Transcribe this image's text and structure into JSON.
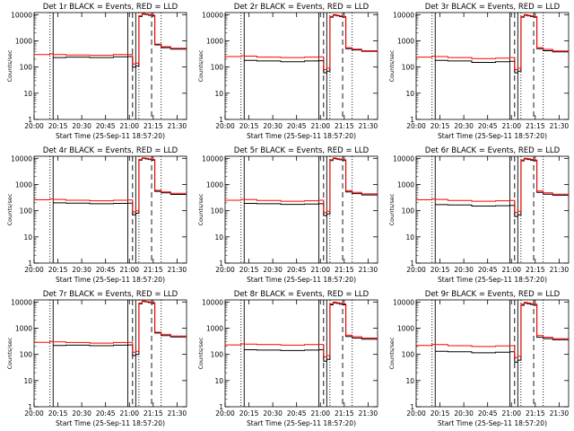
{
  "figure": {
    "xtick_labels": [
      "20:00",
      "20:15",
      "20:30",
      "20:45",
      "21:00",
      "21:15",
      "21:30"
    ],
    "xtick_minutes": [
      0,
      15,
      30,
      45,
      60,
      75,
      90
    ],
    "x_range_minutes": [
      0,
      96
    ],
    "ytick_labels": [
      "1",
      "10",
      "100",
      "1000",
      "10000"
    ],
    "ytick_values": [
      1,
      10,
      100,
      1000,
      10000
    ],
    "y_range": [
      1,
      12000
    ],
    "y_scale": "log",
    "ylabel": "Counts/sec",
    "xlabel": "Start Time (25-Sep-11 18:57:20)",
    "colors": {
      "events": "#000000",
      "lld": "#ff0000",
      "axes": "#000000"
    }
  },
  "chart_data": [
    {
      "type": "line",
      "title": "Det 1r BLACK = Events, RED = LLD",
      "x": [
        0,
        10,
        12,
        20,
        35,
        50,
        59,
        62,
        64,
        66,
        68,
        70,
        72,
        74,
        76,
        80,
        86,
        96
      ],
      "series": [
        {
          "values": [
            null,
            null,
            230,
            240,
            230,
            245,
            250,
            100,
            110,
            8500,
            10500,
            10000,
            9500,
            9000,
            700,
            550,
            480,
            420
          ]
        },
        {
          "values": [
            300,
            320,
            300,
            290,
            280,
            300,
            300,
            130,
            140,
            9000,
            11000,
            10500,
            10000,
            9500,
            750,
            600,
            520,
            450
          ]
        }
      ],
      "vlines_solid": [
        12,
        59,
        64
      ],
      "vlines_dashed": [
        62,
        74
      ],
      "vlines_dotted": [
        10,
        66,
        80
      ]
    },
    {
      "type": "line",
      "title": "Det 2r BLACK = Events, RED = LLD",
      "x": [
        0,
        10,
        12,
        20,
        35,
        50,
        59,
        62,
        64,
        66,
        68,
        70,
        72,
        74,
        76,
        80,
        86,
        96
      ],
      "series": [
        {
          "values": [
            null,
            null,
            180,
            170,
            160,
            170,
            175,
            60,
            70,
            8000,
            9500,
            9000,
            8500,
            8000,
            500,
            450,
            400,
            350
          ]
        },
        {
          "values": [
            250,
            270,
            260,
            240,
            230,
            240,
            245,
            80,
            90,
            8500,
            10000,
            9500,
            9000,
            8500,
            550,
            480,
            420,
            360
          ]
        }
      ],
      "vlines_solid": [
        12,
        59,
        64
      ],
      "vlines_dashed": [
        62,
        74
      ],
      "vlines_dotted": [
        10,
        66,
        80
      ]
    },
    {
      "type": "line",
      "title": "Det 3r BLACK = Events, RED = LLD",
      "x": [
        0,
        10,
        12,
        20,
        35,
        50,
        59,
        62,
        64,
        66,
        68,
        70,
        72,
        74,
        76,
        80,
        86,
        96
      ],
      "series": [
        {
          "values": [
            null,
            null,
            180,
            170,
            150,
            160,
            165,
            60,
            70,
            8000,
            9500,
            9000,
            8500,
            8000,
            500,
            420,
            380,
            330
          ]
        },
        {
          "values": [
            240,
            260,
            250,
            230,
            210,
            220,
            230,
            80,
            90,
            8500,
            10000,
            9500,
            9000,
            8500,
            550,
            470,
            410,
            350
          ]
        }
      ],
      "vlines_solid": [
        12,
        59,
        64
      ],
      "vlines_dashed": [
        62,
        74
      ],
      "vlines_dotted": [
        10,
        66,
        80
      ]
    },
    {
      "type": "line",
      "title": "Det 4r BLACK = Events, RED = LLD",
      "x": [
        0,
        10,
        12,
        20,
        35,
        50,
        59,
        62,
        64,
        66,
        68,
        70,
        72,
        74,
        76,
        80,
        86,
        96
      ],
      "series": [
        {
          "values": [
            null,
            null,
            200,
            195,
            185,
            190,
            195,
            70,
            80,
            8500,
            10000,
            9500,
            9000,
            8500,
            550,
            480,
            420,
            380
          ]
        },
        {
          "values": [
            260,
            280,
            270,
            250,
            240,
            250,
            255,
            90,
            100,
            9000,
            10500,
            10000,
            9500,
            9000,
            600,
            520,
            460,
            400
          ]
        }
      ],
      "vlines_solid": [
        12,
        59,
        64
      ],
      "vlines_dashed": [
        62,
        74
      ],
      "vlines_dotted": [
        10,
        66,
        80
      ]
    },
    {
      "type": "line",
      "title": "Det 5r BLACK = Events, RED = LLD",
      "x": [
        0,
        10,
        12,
        20,
        35,
        50,
        59,
        62,
        64,
        66,
        68,
        70,
        72,
        74,
        76,
        80,
        86,
        96
      ],
      "series": [
        {
          "values": [
            null,
            null,
            190,
            185,
            175,
            180,
            185,
            65,
            75,
            8200,
            9800,
            9300,
            8800,
            8300,
            520,
            450,
            400,
            360
          ]
        },
        {
          "values": [
            250,
            270,
            265,
            245,
            230,
            240,
            250,
            85,
            95,
            8800,
            10300,
            9800,
            9300,
            8800,
            580,
            500,
            440,
            390
          ]
        }
      ],
      "vlines_solid": [
        12,
        59,
        64
      ],
      "vlines_dashed": [
        62,
        74
      ],
      "vlines_dotted": [
        10,
        66,
        80
      ]
    },
    {
      "type": "line",
      "title": "Det 6r BLACK = Events, RED = LLD",
      "x": [
        0,
        10,
        12,
        20,
        35,
        50,
        59,
        62,
        64,
        66,
        68,
        70,
        72,
        74,
        76,
        80,
        86,
        96
      ],
      "series": [
        {
          "values": [
            null,
            null,
            170,
            165,
            150,
            155,
            160,
            60,
            70,
            8000,
            9500,
            9000,
            8500,
            8000,
            500,
            430,
            390,
            340
          ]
        },
        {
          "values": [
            260,
            280,
            270,
            245,
            230,
            240,
            245,
            85,
            95,
            8600,
            10100,
            9600,
            9100,
            8600,
            560,
            480,
            430,
            370
          ]
        }
      ],
      "vlines_solid": [
        12,
        59,
        64
      ],
      "vlines_dashed": [
        62,
        74
      ],
      "vlines_dotted": [
        10,
        66,
        80
      ]
    },
    {
      "type": "line",
      "title": "Det 7r BLACK = Events, RED = LLD",
      "x": [
        0,
        10,
        12,
        20,
        35,
        50,
        59,
        62,
        64,
        66,
        68,
        70,
        72,
        74,
        76,
        80,
        86,
        96
      ],
      "series": [
        {
          "values": [
            null,
            null,
            220,
            225,
            215,
            225,
            230,
            90,
            100,
            8500,
            10500,
            10000,
            9500,
            9000,
            650,
            520,
            460,
            400
          ]
        },
        {
          "values": [
            290,
            310,
            300,
            285,
            270,
            285,
            290,
            120,
            130,
            9000,
            11000,
            10500,
            10000,
            9500,
            700,
            580,
            500,
            430
          ]
        }
      ],
      "vlines_solid": [
        12,
        59,
        64
      ],
      "vlines_dashed": [
        62,
        74
      ],
      "vlines_dotted": [
        10,
        66,
        80
      ]
    },
    {
      "type": "line",
      "title": "Det 8r BLACK = Events, RED = LLD",
      "x": [
        0,
        10,
        12,
        20,
        35,
        50,
        59,
        62,
        64,
        66,
        68,
        70,
        72,
        74,
        76,
        80,
        86,
        96
      ],
      "series": [
        {
          "values": [
            null,
            null,
            150,
            145,
            140,
            145,
            150,
            55,
            65,
            7800,
            9300,
            8800,
            8300,
            7800,
            480,
            420,
            380,
            330
          ]
        },
        {
          "values": [
            230,
            250,
            245,
            235,
            225,
            235,
            240,
            80,
            90,
            8400,
            9900,
            9400,
            8900,
            8400,
            540,
            470,
            420,
            360
          ]
        }
      ],
      "vlines_solid": [
        12,
        59,
        64
      ],
      "vlines_dashed": [
        62,
        74
      ],
      "vlines_dotted": [
        10,
        66,
        80
      ]
    },
    {
      "type": "line",
      "title": "Det 9r BLACK = Events, RED = LLD",
      "x": [
        0,
        10,
        12,
        20,
        35,
        50,
        59,
        62,
        64,
        66,
        68,
        70,
        72,
        74,
        76,
        80,
        86,
        96
      ],
      "series": [
        {
          "values": [
            null,
            null,
            130,
            125,
            115,
            120,
            125,
            50,
            60,
            7500,
            9000,
            8500,
            8000,
            7500,
            450,
            400,
            360,
            320
          ]
        },
        {
          "values": [
            220,
            240,
            235,
            215,
            200,
            210,
            215,
            75,
            85,
            8200,
            9700,
            9200,
            8700,
            8200,
            520,
            450,
            400,
            350
          ]
        }
      ],
      "vlines_solid": [
        12,
        59,
        64
      ],
      "vlines_dashed": [
        62,
        74
      ],
      "vlines_dotted": [
        10,
        66,
        80
      ]
    }
  ]
}
